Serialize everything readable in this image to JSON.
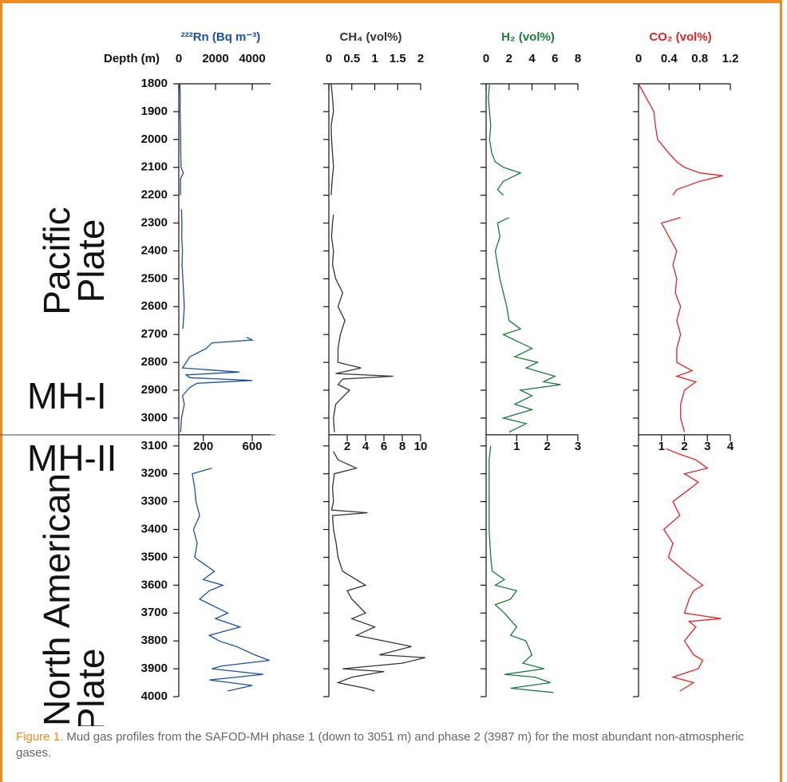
{
  "figure": {
    "depth_label": "Depth (m)",
    "zones": {
      "pacific": [
        "Pacific",
        "Plate"
      ],
      "mh1": "MH-I",
      "mh2": "MH-II",
      "north_american": [
        "North American",
        "Plate"
      ]
    },
    "caption": {
      "label": "Figure 1.",
      "text": "Mud gas profiles from the SAFOD-MH phase 1 (down to 3051 m) and phase 2 (3987 m) for the most abundant non-atmospheric gases."
    }
  },
  "chart_data": [
    {
      "type": "line",
      "title": "²²²Rn (Bq m⁻³)",
      "color": "#1d4f9e",
      "xlim": [
        0,
        5000
      ],
      "xticks": [
        0,
        2000,
        4000
      ],
      "ylim": [
        1800,
        3060
      ],
      "yticks": [
        1800,
        1900,
        2000,
        2100,
        2200,
        2300,
        2400,
        2500,
        2600,
        2700,
        2800,
        2900,
        3000
      ],
      "ytick_labels": true,
      "y": [
        1800,
        1850,
        1900,
        1950,
        2000,
        2050,
        2100,
        2120,
        2140,
        2200,
        2225,
        2250,
        2300,
        2350,
        2400,
        2450,
        2500,
        2550,
        2600,
        2650,
        2680,
        2695,
        2710,
        2720,
        2730,
        2750,
        2780,
        2800,
        2820,
        2835,
        2845,
        2855,
        2865,
        2875,
        2890,
        2920,
        2950,
        3000,
        3050
      ],
      "values": [
        60,
        80,
        70,
        90,
        100,
        110,
        120,
        250,
        100,
        90,
        null,
        150,
        170,
        160,
        200,
        180,
        220,
        260,
        300,
        250,
        220,
        null,
        3700,
        4000,
        1800,
        1500,
        600,
        400,
        200,
        3300,
        400,
        600,
        4000,
        1000,
        600,
        200,
        300,
        150,
        100
      ]
    },
    {
      "type": "line",
      "color": "#1d4f9e",
      "xlim": [
        0,
        750
      ],
      "xticks": [
        200,
        600
      ],
      "ylim": [
        3060,
        4000
      ],
      "yticks": [
        3100,
        3200,
        3300,
        3400,
        3500,
        3600,
        3700,
        3800,
        3900,
        4000
      ],
      "ytick_labels": true,
      "y": [
        3180,
        3200,
        3250,
        3300,
        3350,
        3400,
        3450,
        3500,
        3550,
        3580,
        3600,
        3620,
        3650,
        3700,
        3720,
        3750,
        3780,
        3800,
        3820,
        3850,
        3870,
        3890,
        3900,
        3920,
        3940,
        3960,
        3980
      ],
      "values": [
        270,
        110,
        130,
        140,
        170,
        120,
        150,
        130,
        290,
        200,
        360,
        250,
        170,
        400,
        300,
        500,
        250,
        330,
        470,
        620,
        740,
        350,
        270,
        690,
        250,
        600,
        400
      ]
    },
    {
      "type": "line",
      "title": "CH₄ (vol%)",
      "color": "#333333",
      "xlim": [
        0,
        2
      ],
      "xticks": [
        0,
        0.5,
        1,
        1.5,
        2
      ],
      "ylim": [
        1800,
        3060
      ],
      "yticks": [
        1800,
        1900,
        2000,
        2100,
        2200,
        2300,
        2400,
        2500,
        2600,
        2700,
        2800,
        2900,
        3000
      ],
      "ytick_labels": false,
      "y": [
        1800,
        1850,
        1900,
        1950,
        2000,
        2050,
        2100,
        2150,
        2200,
        2225,
        2270,
        2300,
        2350,
        2400,
        2450,
        2500,
        2550,
        2600,
        2650,
        2700,
        2750,
        2800,
        2820,
        2840,
        2850,
        2860,
        2880,
        2900,
        2950,
        3000,
        3050
      ],
      "values": [
        0.05,
        0.08,
        0.1,
        0.05,
        0.06,
        0.08,
        0.1,
        0.07,
        0.05,
        null,
        0.1,
        0.08,
        0.06,
        0.1,
        0.08,
        0.15,
        0.3,
        0.2,
        0.35,
        0.25,
        0.2,
        0.2,
        0.7,
        0.15,
        1.4,
        0.3,
        0.2,
        0.45,
        0.15,
        0.1,
        0.12
      ]
    },
    {
      "type": "line",
      "color": "#333333",
      "xlim": [
        0,
        10
      ],
      "xticks": [
        2,
        4,
        6,
        8,
        10
      ],
      "ylim": [
        3060,
        4000
      ],
      "yticks": [
        3100,
        3200,
        3300,
        3400,
        3500,
        3600,
        3700,
        3800,
        3900,
        4000
      ],
      "ytick_labels": false,
      "y": [
        3120,
        3150,
        3180,
        3200,
        3250,
        3300,
        3330,
        3340,
        3350,
        3400,
        3450,
        3500,
        3550,
        3600,
        3620,
        3650,
        3700,
        3720,
        3750,
        3780,
        3800,
        3820,
        3850,
        3860,
        3880,
        3900,
        3910,
        3930,
        3950,
        3970,
        3980
      ],
      "values": [
        0.5,
        1,
        3,
        0.6,
        0.4,
        0.5,
        0.3,
        4.2,
        0.4,
        0.5,
        0.8,
        1,
        1.5,
        4,
        2,
        2.5,
        4,
        2.5,
        5,
        3,
        6,
        9,
        5.5,
        10.5,
        8,
        1.5,
        6,
        2.5,
        1,
        4,
        5
      ]
    },
    {
      "type": "line",
      "title": "H₂ (vol%)",
      "color": "#1b7a3c",
      "xlim": [
        0,
        8
      ],
      "xticks": [
        0,
        2,
        4,
        6,
        8
      ],
      "ylim": [
        1800,
        3060
      ],
      "yticks": [
        1800,
        1900,
        2000,
        2100,
        2200,
        2300,
        2400,
        2500,
        2600,
        2700,
        2800,
        2900,
        3000
      ],
      "ytick_labels": false,
      "y": [
        1800,
        1850,
        1900,
        1950,
        2000,
        2050,
        2080,
        2100,
        2120,
        2150,
        2180,
        2200,
        2225,
        2280,
        2300,
        2350,
        2400,
        2450,
        2500,
        2550,
        2600,
        2650,
        2680,
        2700,
        2720,
        2750,
        2780,
        2800,
        2820,
        2850,
        2870,
        2880,
        2900,
        2920,
        2950,
        2970,
        3000,
        3020,
        3050
      ],
      "values": [
        0.3,
        0.2,
        0.3,
        0.4,
        0.3,
        0.5,
        0.8,
        1.5,
        3,
        1.5,
        1,
        1.5,
        null,
        2,
        1,
        1.2,
        0.8,
        1,
        1.2,
        1.5,
        1.8,
        2,
        3,
        1.5,
        2.5,
        4,
        2.5,
        4.5,
        3.5,
        6,
        5,
        6.5,
        3,
        4,
        2.5,
        4,
        1.5,
        3.5,
        2
      ]
    },
    {
      "type": "line",
      "color": "#1b7a3c",
      "xlim": [
        0,
        3
      ],
      "xticks": [
        1,
        2,
        3
      ],
      "ylim": [
        3060,
        4000
      ],
      "yticks": [
        3100,
        3200,
        3300,
        3400,
        3500,
        3600,
        3700,
        3800,
        3900,
        4000
      ],
      "ytick_labels": false,
      "y": [
        3100,
        3150,
        3200,
        3300,
        3400,
        3500,
        3550,
        3580,
        3600,
        3620,
        3650,
        3670,
        3700,
        3750,
        3780,
        3800,
        3850,
        3880,
        3900,
        3920,
        3930,
        3950,
        3970,
        3985
      ],
      "values": [
        0.15,
        0.1,
        0.1,
        0.1,
        0.1,
        0.15,
        0.2,
        0.6,
        0.3,
        1,
        0.8,
        0.3,
        0.6,
        1,
        0.8,
        1.3,
        1.5,
        1.2,
        1.9,
        0.6,
        1.6,
        2.1,
        0.8,
        2.2
      ]
    },
    {
      "type": "line",
      "title": "CO₂ (vol%)",
      "color": "#e02424",
      "xlim": [
        0,
        1.2
      ],
      "xticks": [
        0,
        0.4,
        0.8,
        1.2
      ],
      "ylim": [
        1800,
        3060
      ],
      "yticks": [
        1800,
        1900,
        2000,
        2100,
        2200,
        2300,
        2400,
        2500,
        2600,
        2700,
        2800,
        2900,
        3000
      ],
      "ytick_labels": false,
      "y": [
        1800,
        1850,
        1900,
        1950,
        2000,
        2050,
        2080,
        2100,
        2120,
        2130,
        2150,
        2180,
        2200,
        2225,
        2280,
        2300,
        2350,
        2400,
        2450,
        2500,
        2550,
        2600,
        2650,
        2700,
        2750,
        2800,
        2830,
        2850,
        2870,
        2900,
        2950,
        3000,
        3050
      ],
      "values": [
        0,
        0.1,
        0.2,
        0.22,
        0.25,
        0.4,
        0.5,
        0.6,
        0.8,
        1.1,
        0.8,
        0.5,
        0.45,
        null,
        0.55,
        0.3,
        0.4,
        0.5,
        0.45,
        0.5,
        0.48,
        0.55,
        0.5,
        0.55,
        0.5,
        0.5,
        0.7,
        0.5,
        0.75,
        0.6,
        0.55,
        0.55,
        0.6
      ]
    },
    {
      "type": "line",
      "color": "#e02424",
      "xlim": [
        0,
        4
      ],
      "xticks": [
        1,
        2,
        3,
        4
      ],
      "ylim": [
        3060,
        4000
      ],
      "yticks": [
        3100,
        3200,
        3300,
        3400,
        3500,
        3600,
        3700,
        3800,
        3900,
        4000
      ],
      "ytick_labels": false,
      "y": [
        3110,
        3130,
        3150,
        3180,
        3200,
        3230,
        3250,
        3300,
        3350,
        3400,
        3450,
        3500,
        3550,
        3600,
        3620,
        3650,
        3700,
        3720,
        3730,
        3750,
        3800,
        3850,
        3870,
        3900,
        3930,
        3950,
        3980
      ],
      "values": [
        1.2,
        1.8,
        2.5,
        3,
        2,
        2.6,
        2.3,
        1.5,
        1.8,
        1.1,
        1.5,
        1.3,
        2,
        2.8,
        2.4,
        2.2,
        2,
        3.6,
        2.2,
        2.5,
        2,
        2.4,
        2.8,
        2.6,
        1.5,
        2.4,
        1.8
      ]
    }
  ]
}
